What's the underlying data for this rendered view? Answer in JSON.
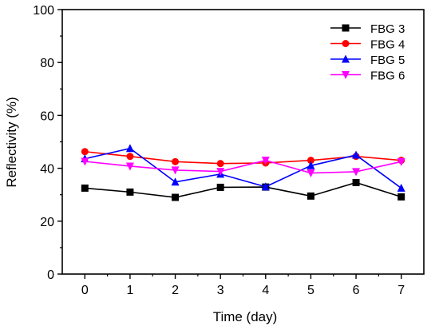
{
  "chart_data": {
    "type": "line",
    "xlabel": "Time (day)",
    "ylabel": "Reflectivity (%)",
    "xlim": [
      -0.5,
      7.5
    ],
    "ylim": [
      0,
      100
    ],
    "x_ticks": [
      0,
      1,
      2,
      3,
      4,
      5,
      6,
      7
    ],
    "y_ticks": [
      0,
      20,
      40,
      60,
      80,
      100
    ],
    "grid": false,
    "legend_position": "top-right",
    "x": [
      0,
      1,
      2,
      3,
      4,
      5,
      6,
      7
    ],
    "series": [
      {
        "name": "FBG 3",
        "color": "#000000",
        "marker": "square",
        "values": [
          32.5,
          31.0,
          29.0,
          32.8,
          32.9,
          29.5,
          34.6,
          29.2
        ]
      },
      {
        "name": "FBG 4",
        "color": "#ff0000",
        "marker": "circle",
        "values": [
          46.3,
          44.5,
          42.5,
          41.8,
          42.0,
          43.0,
          44.5,
          43.0
        ]
      },
      {
        "name": "FBG 5",
        "color": "#0000ff",
        "marker": "triangle-up",
        "values": [
          43.6,
          47.5,
          34.8,
          37.8,
          33.0,
          41.0,
          45.0,
          32.5
        ]
      },
      {
        "name": "FBG 6",
        "color": "#ff00ff",
        "marker": "triangle-down",
        "values": [
          42.6,
          40.8,
          39.3,
          38.8,
          43.0,
          38.2,
          38.7,
          42.5
        ]
      }
    ]
  }
}
